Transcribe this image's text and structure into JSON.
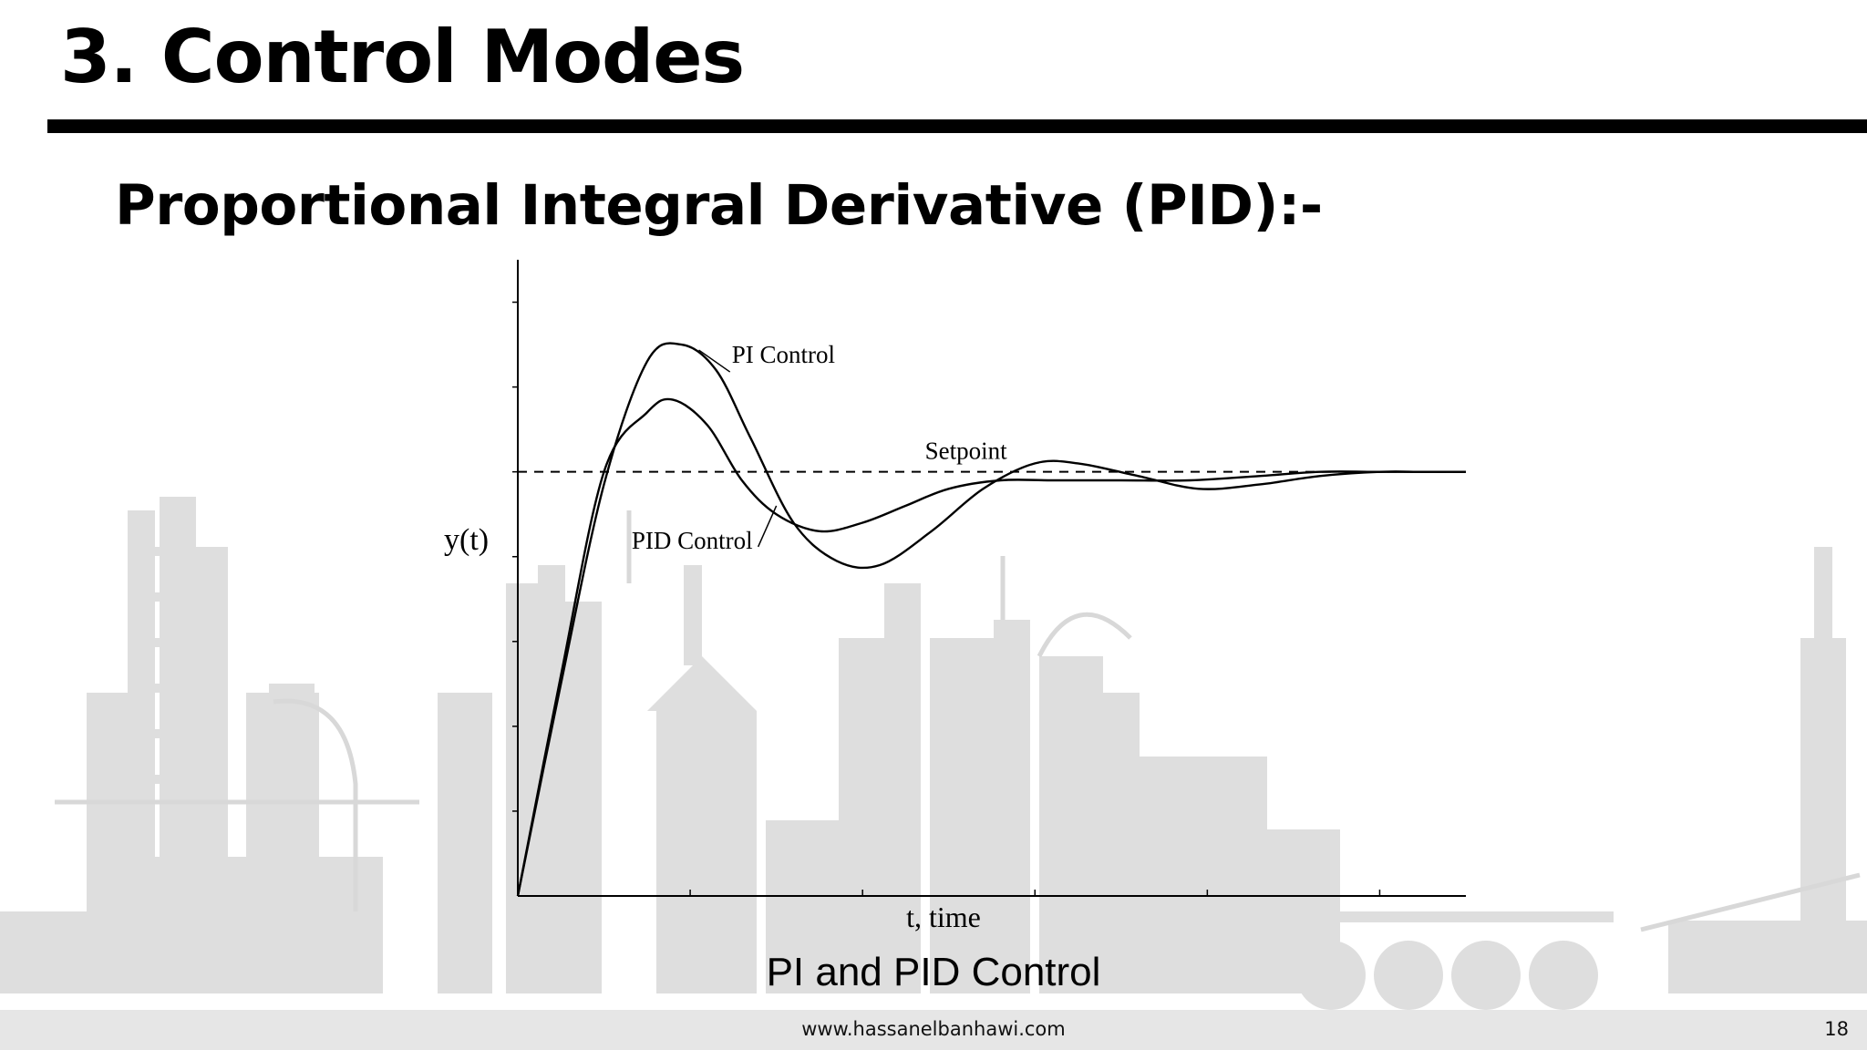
{
  "slide": {
    "title": "3. Control Modes",
    "subtitle": "Proportional Integral Derivative (PID):-",
    "caption": "PI and PID Control",
    "footer_url": "www.hassanelbanhawi.com",
    "slide_number": "18"
  },
  "colors": {
    "background": "#ffffff",
    "text": "#000000",
    "rule": "#000000",
    "refinery_silhouette": "#dcdcdc",
    "footer_band": "#e6e6e6"
  },
  "chart_data": {
    "type": "line",
    "title": "",
    "xlabel": "t, time",
    "ylabel": "y(t)",
    "xlim": [
      0,
      11
    ],
    "ylim": [
      0,
      1.5
    ],
    "grid": false,
    "legend": "none",
    "setpoint": {
      "label": "Setpoint",
      "value": 1.0,
      "style": "dashed"
    },
    "series": [
      {
        "name": "PI Control",
        "x": [
          0,
          0.5,
          1.0,
          1.5,
          1.9,
          2.3,
          2.7,
          3.2,
          3.7,
          4.2,
          4.8,
          5.4,
          6.0,
          6.5,
          7.2,
          7.9,
          8.6,
          9.3,
          10.0,
          10.5,
          11.0
        ],
        "y": [
          0,
          0.5,
          0.97,
          1.26,
          1.3,
          1.24,
          1.08,
          0.88,
          0.79,
          0.78,
          0.86,
          0.96,
          1.02,
          1.02,
          0.99,
          0.96,
          0.97,
          0.99,
          1.0,
          1.0,
          1.0
        ]
      },
      {
        "name": "PID Control",
        "x": [
          0,
          0.5,
          1.0,
          1.5,
          1.8,
          2.2,
          2.6,
          3.0,
          3.5,
          4.0,
          4.5,
          5.0,
          5.6,
          6.2,
          7.0,
          7.8,
          8.6,
          9.3,
          10.0,
          10.5,
          11.0
        ],
        "y": [
          0,
          0.52,
          1.0,
          1.14,
          1.17,
          1.11,
          0.98,
          0.9,
          0.86,
          0.88,
          0.92,
          0.96,
          0.98,
          0.98,
          0.98,
          0.98,
          0.99,
          1.0,
          1.0,
          1.0,
          1.0
        ]
      }
    ],
    "annotations": [
      {
        "text": "PI Control",
        "series": "PI Control"
      },
      {
        "text": "Setpoint",
        "series": "setpoint"
      },
      {
        "text": "PID Control",
        "series": "PID Control"
      }
    ]
  }
}
